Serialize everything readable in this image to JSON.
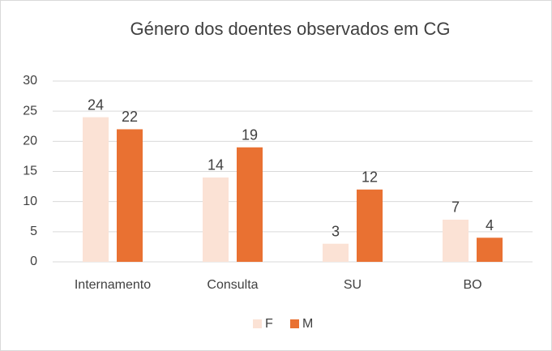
{
  "chart_data": {
    "type": "bar",
    "title": "Género dos doentes observados em CG",
    "categories": [
      "Internamento",
      "Consulta",
      "SU",
      "BO"
    ],
    "series": [
      {
        "name": "F",
        "color": "#fbe2d5",
        "values": [
          24,
          14,
          3,
          7
        ]
      },
      {
        "name": "M",
        "color": "#e97132",
        "values": [
          22,
          19,
          12,
          4
        ]
      }
    ],
    "ylim": [
      0,
      30
    ],
    "yticks": [
      0,
      5,
      10,
      15,
      20,
      25,
      30
    ],
    "grid": true,
    "legend": "bottom"
  }
}
